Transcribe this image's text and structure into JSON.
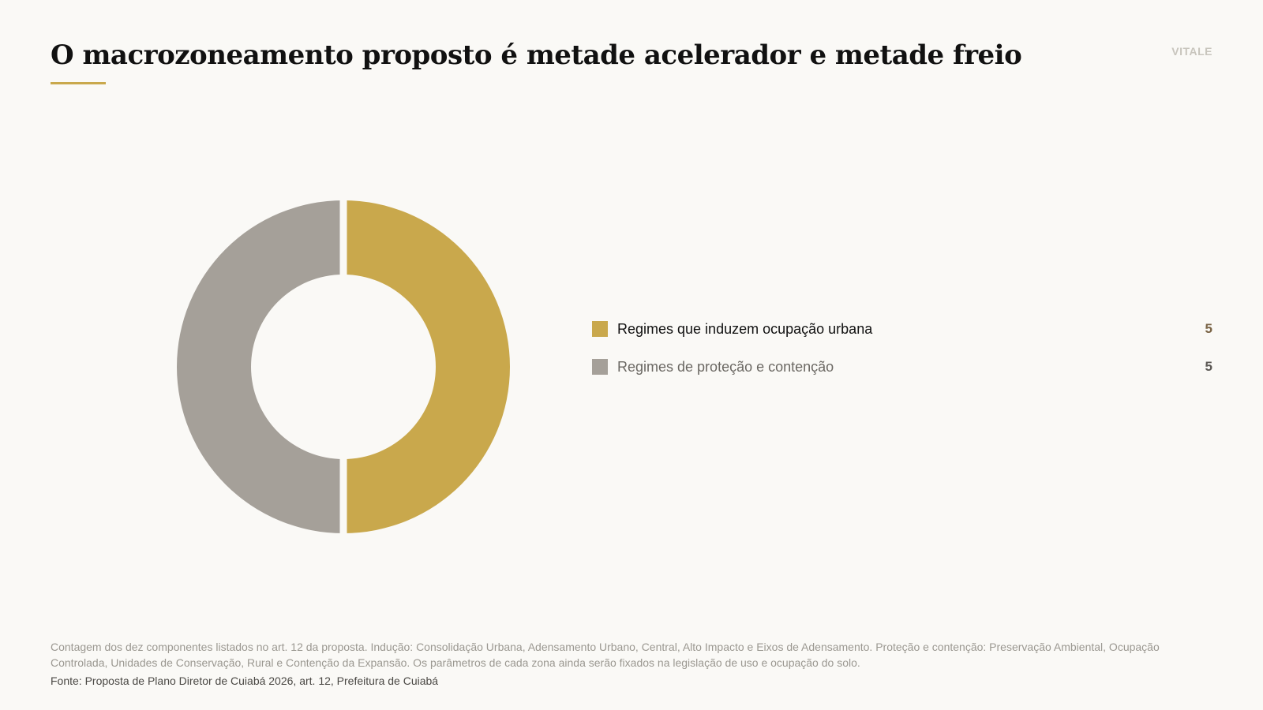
{
  "header": {
    "title": "O macrozoneamento proposto é metade acelerador e metade freio",
    "brand": "VITALE"
  },
  "chart_data": {
    "type": "pie",
    "title": "O macrozoneamento proposto é metade acelerador e metade freio",
    "donut": true,
    "series": [
      {
        "name": "Regimes que induzem ocupação urbana",
        "value": 5,
        "color": "#c9a84c"
      },
      {
        "name": "Regimes de proteção e contenção",
        "value": 5,
        "color": "#a5a099"
      }
    ],
    "legend": "right"
  },
  "legend": {
    "items": [
      {
        "label": "Regimes que induzem ocupação urbana",
        "value": "5",
        "color": "#c9a84c"
      },
      {
        "label": "Regimes de proteção e contenção",
        "value": "5",
        "color": "#a5a099"
      }
    ]
  },
  "footer": {
    "note": "Contagem dos dez componentes listados no art. 12 da proposta. Indução: Consolidação Urbana, Adensamento Urbano, Central, Alto Impacto e Eixos de Adensamento. Proteção e contenção: Preservação Ambiental, Ocupação Controlada, Unidades de Conservação, Rural e Contenção da Expansão. Os parâmetros de cada zona ainda serão fixados na legislação de uso e ocupação do solo.",
    "source": "Fonte: Proposta de Plano Diretor de Cuiabá 2026, art. 12, Prefeitura de Cuiabá"
  },
  "colors": {
    "background": "#faf9f6",
    "accent": "#c9a84c",
    "secondary": "#a5a099"
  }
}
